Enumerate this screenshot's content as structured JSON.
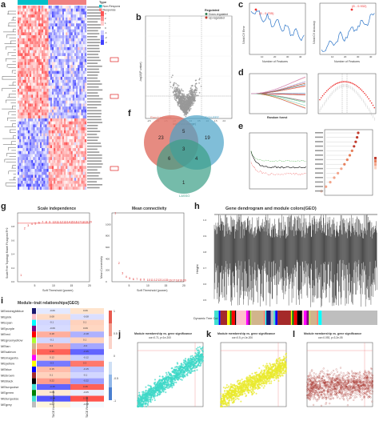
{
  "panels": {
    "a": {
      "label": "a",
      "legend_title": "Type",
      "legend_items": [
        "Non-Response",
        "Response"
      ],
      "legend_colors": [
        "#00c0c8",
        "#f08080"
      ]
    },
    "b": {
      "label": "b",
      "legend_title": "Regulated",
      "legend_items": [
        "Down-regulated",
        "Up-regulated"
      ],
      "legend_colors": [
        "#2e7d4f",
        "#c0392b"
      ],
      "xlabel": "log2(Fold change)",
      "ylabel": "-log10(P-value)"
    },
    "c": {
      "label": "c",
      "left_annotation": "(5 - 0.705)",
      "right_annotation": "(8 - 0.932)",
      "xlabel": "Number of Features",
      "ylabel_left": "5-fold CV Error",
      "ylabel_right": "5-fold CV Accuracy"
    },
    "d": {
      "label": "d",
      "caption": "Random forest"
    },
    "e": {
      "label": "e"
    },
    "f": {
      "label": "f",
      "set_a": "RandomForest",
      "set_b": "SVM-RFE",
      "set_c": "LASSO",
      "counts": {
        "a_only": "23",
        "b_only": "19",
        "c_only": "1",
        "ab": "5",
        "ac": "6",
        "bc": "4",
        "abc": "3"
      }
    },
    "g": {
      "label": "g",
      "left_title": "Scale independence",
      "right_title": "Mean connectivity",
      "left_ylabel": "Scale Free Topology Model Fit,signed R^2",
      "right_ylabel": "Mean Connectivity",
      "xlabel": "Soft Threshold (power)"
    },
    "h": {
      "label": "h",
      "title": "Gene dendrogram and module colors(GEO)",
      "ylabel": "Height",
      "module_label": "Dynamic Tree Cut"
    },
    "i": {
      "label": "i",
      "title": "Module−trait relationships(GEO)",
      "col1": "TACE Non-Response",
      "col2": "TACE Response"
    },
    "j": {
      "label": "j",
      "title": "Module membership vs. gene significance",
      "subtitle": "cor=0.71, p<1e-200"
    },
    "k": {
      "label": "k",
      "title": "Module membership vs. gene significance",
      "subtitle": "cor=0.5, p<1e-200"
    },
    "l": {
      "label": "l",
      "title": "Module membership vs. gene significance",
      "subtitle": "cor=0.092, p=3.2e-05"
    }
  },
  "modules": [
    {
      "name": "MEmidnightblue",
      "color": "#191970",
      "v1": "-0.06",
      "v2": "0.06"
    },
    {
      "name": "MEpink",
      "color": "#ffc0cb",
      "v1": "0.08",
      "v2": "-0.08"
    },
    {
      "name": "MEcyan",
      "color": "#00ffff",
      "v1": "-0.1",
      "v2": "0.1"
    },
    {
      "name": "MEpurple",
      "color": "#800080",
      "v1": "-0.09",
      "v2": "0.09"
    },
    {
      "name": "MEred",
      "color": "#ff0000",
      "v1": "0.18",
      "v2": "-0.18"
    },
    {
      "name": "MEgreenyellow",
      "color": "#adff2f",
      "v1": "-0.1",
      "v2": "0.1"
    },
    {
      "name": "MEtan",
      "color": "#d2b48c",
      "v1": "0.2",
      "v2": "-0.2"
    },
    {
      "name": "MEsalmon",
      "color": "#fa8072",
      "v1": "0.35",
      "v2": "-0.35"
    },
    {
      "name": "MEmagenta",
      "color": "#ff00ff",
      "v1": "0.12",
      "v2": "-0.12"
    },
    {
      "name": "MEyellow",
      "color": "#ffff00",
      "v1": "-0.3",
      "v2": "0.3"
    },
    {
      "name": "MEblue",
      "color": "#0000ff",
      "v1": "0.15",
      "v2": "-0.15"
    },
    {
      "name": "MEbrown",
      "color": "#a52a2a",
      "v1": "0.1",
      "v2": "-0.1"
    },
    {
      "name": "MEblack",
      "color": "#000000",
      "v1": "0.22",
      "v2": "-0.22"
    },
    {
      "name": "MEturquoise",
      "color": "#40e0d0",
      "v1": "-0.35",
      "v2": "0.35"
    },
    {
      "name": "MEgreen",
      "color": "#008000",
      "v1": "0.05",
      "v2": "-0.05"
    },
    {
      "name": "MEturquoise",
      "color": "#40e0d0",
      "v1": "-0.38",
      "v2": "0.38"
    },
    {
      "name": "MEgrey",
      "color": "#bebebe",
      "v1": "0.02",
      "v2": "-0.02"
    }
  ],
  "chart_data": [
    {
      "type": "line",
      "panel": "g-left",
      "title": "Scale independence",
      "x": [
        1,
        2,
        3,
        4,
        5,
        6,
        7,
        8,
        9,
        10,
        11,
        12,
        13,
        14,
        15,
        16,
        17,
        18,
        19,
        20
      ],
      "y": [
        0.1,
        0.78,
        0.82,
        0.84,
        0.85,
        0.86,
        0.87,
        0.87,
        0.87,
        0.87,
        0.87,
        0.87,
        0.87,
        0.87,
        0.87,
        0.87,
        0.87,
        0.87,
        0.87,
        0.87
      ],
      "xlim": [
        0,
        20
      ],
      "ylim": [
        0,
        1
      ],
      "xticks": [
        "5",
        "10",
        "15",
        "20"
      ],
      "yticks": [
        "0.0",
        "0.2",
        "0.4",
        "0.6",
        "0.8"
      ]
    },
    {
      "type": "line",
      "panel": "g-right",
      "title": "Mean connectivity",
      "x": [
        1,
        2,
        3,
        4,
        5,
        6,
        7,
        8,
        9,
        10,
        11,
        12,
        13,
        14,
        15,
        16,
        17,
        18,
        19,
        20
      ],
      "y": [
        1200,
        330,
        150,
        90,
        60,
        50,
        45,
        40,
        38,
        36,
        35,
        34,
        33,
        32,
        31,
        30,
        30,
        29,
        29,
        28
      ],
      "xlim": [
        0,
        20
      ],
      "ylim": [
        0,
        1200
      ],
      "xticks": [
        "5",
        "10",
        "15",
        "20"
      ],
      "yticks": [
        "0",
        "200",
        "400",
        "600",
        "800",
        "1000"
      ]
    }
  ]
}
